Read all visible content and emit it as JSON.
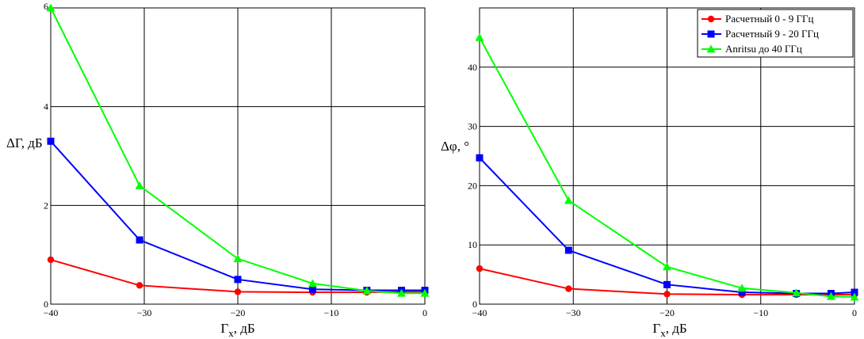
{
  "chart_data": [
    {
      "type": "line",
      "ylabel": "ΔΓ, дБ",
      "xlabel": "Γx, дБ",
      "xlim": [
        -40,
        0
      ],
      "ylim": [
        0,
        6
      ],
      "xticks": [
        -40,
        -30,
        -20,
        -10,
        0
      ],
      "yticks": [
        0,
        2,
        4,
        6
      ],
      "xtick_labels": [
        "−40",
        "−30",
        "−20",
        "−10",
        "0"
      ],
      "ytick_labels": [
        "0",
        "2",
        "4",
        "6"
      ],
      "grid": true,
      "series": [
        {
          "name": "Расчетный 0 - 9 ГГц",
          "color": "#ff0000",
          "marker": "circle",
          "x": [
            -40,
            -30.5,
            -20,
            -12,
            -6.2,
            -2.5,
            0
          ],
          "y": [
            0.9,
            0.38,
            0.25,
            0.24,
            0.24,
            0.25,
            0.25
          ]
        },
        {
          "name": "Расчетный 9 - 20 ГГц",
          "color": "#0000ff",
          "marker": "square",
          "x": [
            -40,
            -30.5,
            -20,
            -12,
            -6.2,
            -2.5,
            0
          ],
          "y": [
            3.3,
            1.3,
            0.5,
            0.3,
            0.28,
            0.28,
            0.28
          ]
        },
        {
          "name": "Anritsu до 40 ГГц",
          "color": "#00ff00",
          "marker": "triangle",
          "x": [
            -40,
            -30.5,
            -20,
            -12,
            -6.2,
            -2.5,
            0
          ],
          "y": [
            6.0,
            2.4,
            0.92,
            0.42,
            0.27,
            0.22,
            0.22
          ]
        }
      ]
    },
    {
      "type": "line",
      "ylabel": "Δφ, °",
      "xlabel": "Γx, дБ",
      "xlim": [
        -40,
        0
      ],
      "ylim": [
        0,
        50
      ],
      "xticks": [
        -40,
        -30,
        -20,
        -10,
        0
      ],
      "yticks": [
        0,
        10,
        20,
        30,
        40
      ],
      "xtick_labels": [
        "−40",
        "−30",
        "−20",
        "−10",
        "0"
      ],
      "ytick_labels": [
        "0",
        "10",
        "20",
        "30",
        "40"
      ],
      "grid": true,
      "legend": "top-right",
      "series": [
        {
          "name": "Расчетный 0 - 9 ГГц",
          "color": "#ff0000",
          "marker": "circle",
          "x": [
            -40,
            -30.5,
            -20,
            -12,
            -6.2,
            -2.5,
            0
          ],
          "y": [
            6.0,
            2.6,
            1.7,
            1.6,
            1.6,
            1.6,
            1.6
          ]
        },
        {
          "name": "Расчетный 9 - 20 ГГц",
          "color": "#0000ff",
          "marker": "square",
          "x": [
            -40,
            -30.5,
            -20,
            -12,
            -6.2,
            -2.5,
            0
          ],
          "y": [
            24.7,
            9.1,
            3.3,
            2.0,
            1.8,
            1.8,
            2.0
          ]
        },
        {
          "name": "Anritsu до 40 ГГц",
          "color": "#00ff00",
          "marker": "triangle",
          "x": [
            -40,
            -30.5,
            -20,
            -12,
            -6.2,
            -2.5,
            0
          ],
          "y": [
            45.0,
            17.5,
            6.3,
            2.7,
            1.9,
            1.3,
            1.2
          ]
        }
      ]
    }
  ]
}
